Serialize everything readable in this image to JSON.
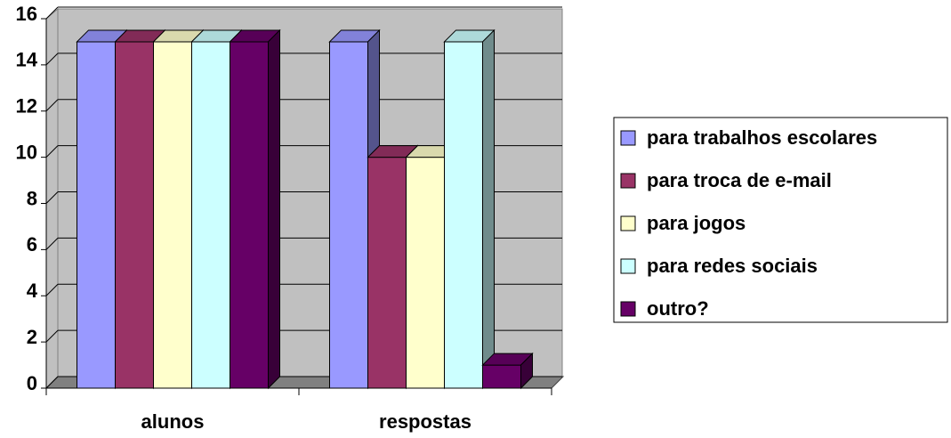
{
  "chart_data": {
    "type": "bar",
    "categories": [
      "alunos",
      "respostas"
    ],
    "series": [
      {
        "name": "para trabalhos escolares",
        "color": "#9999ff",
        "values": [
          15,
          15
        ]
      },
      {
        "name": "para troca de e-mail",
        "color": "#993366",
        "values": [
          15,
          10
        ]
      },
      {
        "name": "para jogos",
        "color": "#ffffcc",
        "values": [
          15,
          10
        ]
      },
      {
        "name": "para redes sociais",
        "color": "#ccffff",
        "values": [
          15,
          15
        ]
      },
      {
        "name": "outro?",
        "color": "#660066",
        "values": [
          15,
          1
        ]
      }
    ],
    "ylim": [
      0,
      16
    ],
    "yticks": [
      0,
      2,
      4,
      6,
      8,
      10,
      12,
      14,
      16
    ],
    "grid": true,
    "legend": "right",
    "three_d": true
  }
}
